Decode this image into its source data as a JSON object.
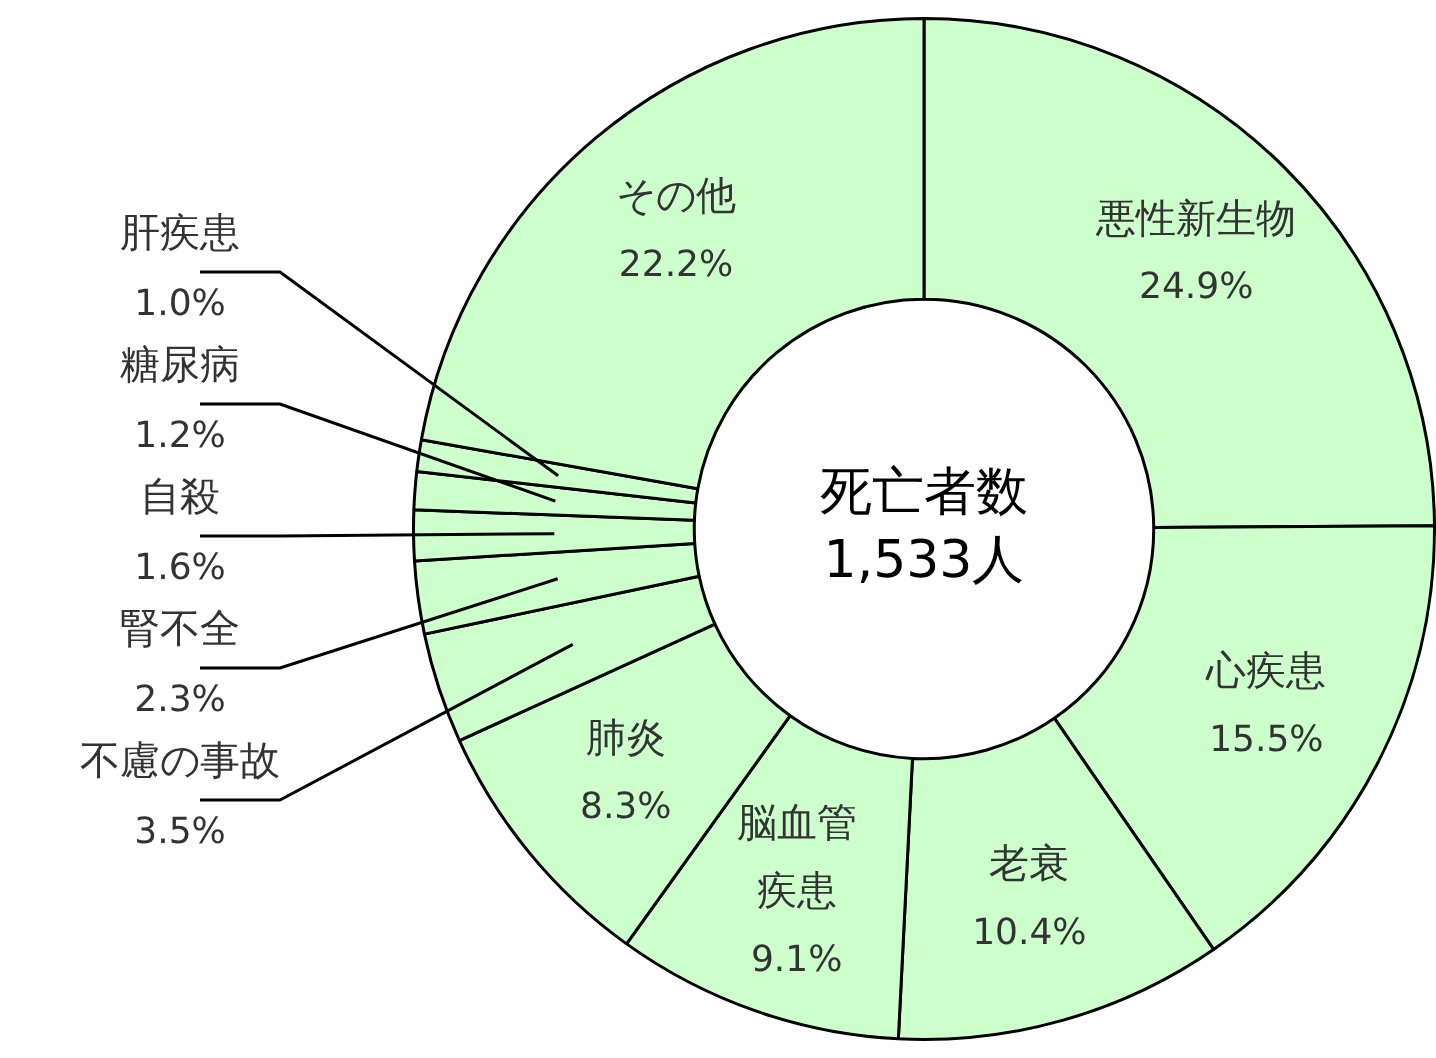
{
  "chart_data": {
    "type": "donut",
    "categories": [
      "悪性新生物",
      "心疾患",
      "老衰",
      "脳血管疾患",
      "肺炎",
      "不慮の事故",
      "腎不全",
      "自殺",
      "糖尿病",
      "肝疾患",
      "その他"
    ],
    "values": [
      24.9,
      15.5,
      10.4,
      9.1,
      8.3,
      3.5,
      2.3,
      1.6,
      1.2,
      1.0,
      22.2
    ],
    "value_labels": [
      "24.9%",
      "15.5%",
      "10.4%",
      "9.1%",
      "8.3%",
      "3.5%",
      "2.3%",
      "1.6%",
      "1.2%",
      "1.0%",
      "22.2%"
    ],
    "colors": [
      "#ccffcc",
      "#ccffcc",
      "#ccffcc",
      "#ccffcc",
      "#ccffcc",
      "#ccffcc",
      "#ccffcc",
      "#ccffcc",
      "#ccffcc",
      "#ccffcc",
      "#ccffcc"
    ],
    "annotations": [
      "死亡者数",
      "1,533人"
    ],
    "legend": false
  }
}
